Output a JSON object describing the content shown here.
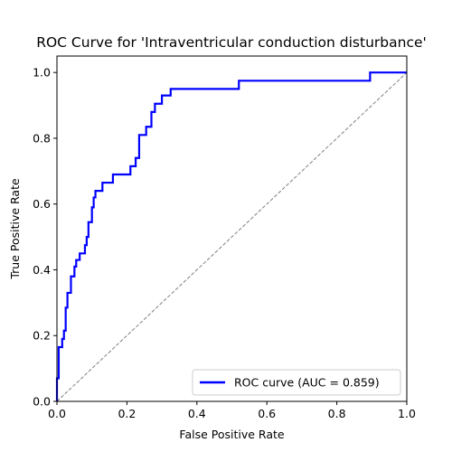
{
  "chart_data": {
    "type": "line",
    "title": "ROC Curve for 'Intraventricular conduction disturbance'",
    "xlabel": "False Positive Rate",
    "ylabel": "True Positive Rate",
    "xlim": [
      0.0,
      1.0
    ],
    "ylim": [
      0.0,
      1.05
    ],
    "xticks": [
      0.0,
      0.2,
      0.4,
      0.6,
      0.8,
      1.0
    ],
    "yticks": [
      0.0,
      0.2,
      0.4,
      0.6,
      0.8,
      1.0
    ],
    "xtick_labels": [
      "0.0",
      "0.2",
      "0.4",
      "0.6",
      "0.8",
      "1.0"
    ],
    "ytick_labels": [
      "0.0",
      "0.2",
      "0.4",
      "0.6",
      "0.8",
      "1.0"
    ],
    "grid": false,
    "legend_position": "lower-right",
    "series": [
      {
        "name": "ROC curve (AUC = 0.859)",
        "color": "#0000ff",
        "style": "solid",
        "x": [
          0.0,
          0.0,
          0.005,
          0.005,
          0.015,
          0.015,
          0.02,
          0.02,
          0.025,
          0.025,
          0.03,
          0.03,
          0.04,
          0.04,
          0.05,
          0.05,
          0.055,
          0.055,
          0.065,
          0.065,
          0.08,
          0.08,
          0.085,
          0.085,
          0.09,
          0.09,
          0.1,
          0.1,
          0.105,
          0.105,
          0.11,
          0.11,
          0.13,
          0.13,
          0.16,
          0.16,
          0.21,
          0.21,
          0.225,
          0.225,
          0.235,
          0.235,
          0.255,
          0.255,
          0.27,
          0.27,
          0.28,
          0.28,
          0.3,
          0.3,
          0.325,
          0.325,
          0.335,
          0.335,
          0.52,
          0.52,
          0.895,
          0.895,
          1.0
        ],
        "y": [
          0.0,
          0.07,
          0.07,
          0.165,
          0.165,
          0.19,
          0.19,
          0.215,
          0.215,
          0.285,
          0.285,
          0.33,
          0.33,
          0.38,
          0.38,
          0.41,
          0.41,
          0.43,
          0.43,
          0.45,
          0.45,
          0.475,
          0.475,
          0.5,
          0.5,
          0.545,
          0.545,
          0.59,
          0.59,
          0.62,
          0.62,
          0.64,
          0.64,
          0.665,
          0.665,
          0.69,
          0.69,
          0.715,
          0.715,
          0.74,
          0.74,
          0.81,
          0.81,
          0.835,
          0.835,
          0.88,
          0.88,
          0.905,
          0.905,
          0.93,
          0.93,
          0.95,
          0.95,
          0.95,
          0.95,
          0.975,
          0.975,
          1.0,
          1.0
        ]
      },
      {
        "name": "",
        "color": "#808080",
        "style": "dashed",
        "x": [
          0.0,
          1.0
        ],
        "y": [
          0.0,
          1.0
        ]
      }
    ]
  }
}
